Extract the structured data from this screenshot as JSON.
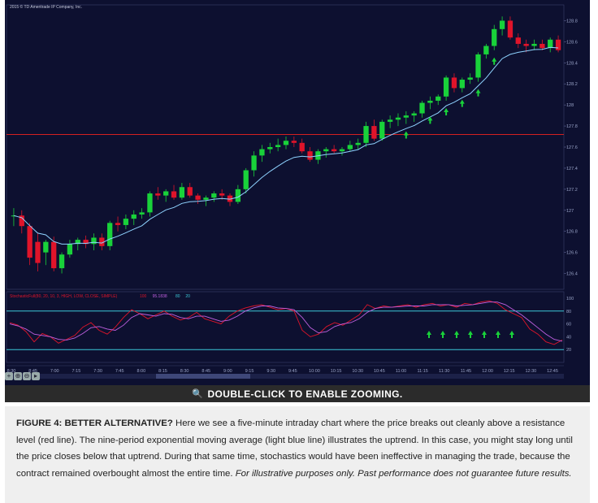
{
  "copyright": "2015 © TD Ameritrade IP Company, Inc.",
  "zoom_label": "DOUBLE-CLICK TO ENABLE ZOOMING.",
  "caption": {
    "label": "FIGURE 4: BETTER ALTERNATIVE?",
    "body": " Here we see a five-minute intraday chart where the price breaks out cleanly above a resistance level (red line). The nine-period exponential moving average (light blue line) illustrates the uptrend. In this case, you might stay long until the price closes below that uptrend. During that same time, stochastics would have been ineffective in managing the trade, because the contract remained overbought almost the entire time.",
    "disclaimer": " For illustrative purposes only. Past performance does not guarantee future results."
  },
  "colors": {
    "background": "#0d1030",
    "up": "#19d23a",
    "down": "#e0142a",
    "ema": "#8fd3ff",
    "resistance": "#d42020",
    "stoch_k": "#e0142a",
    "stoch_d": "#c060e0",
    "band": "#3cc8d8"
  },
  "chart_data": [
    {
      "type": "candlestick",
      "resistance": 127.72,
      "ylim": [
        126.25,
        128.95
      ],
      "yticks": [
        "128.8",
        "128.6",
        "128.4",
        "128.2",
        "128",
        "127.8",
        "127.6",
        "127.4",
        "127.2",
        "127",
        "126.8",
        "126.6",
        "126.4"
      ],
      "xticks": [
        "8:30",
        "8:45",
        "7:00",
        "7:15",
        "7:30",
        "7:45",
        "8:00",
        "8:15",
        "8:30",
        "8:45",
        "9:00",
        "9:15",
        "9:30",
        "9:45",
        "10:00",
        "10:15",
        "10:30",
        "10:45",
        "11:00",
        "11:15",
        "11:30",
        "11:45",
        "12:00",
        "12:15",
        "12:30",
        "12:45"
      ],
      "ohlc": [
        [
          126.95,
          127.02,
          126.85,
          126.95
        ],
        [
          126.95,
          127.0,
          126.78,
          126.85
        ],
        [
          126.85,
          126.88,
          126.48,
          126.55
        ],
        [
          126.7,
          126.78,
          126.42,
          126.5
        ],
        [
          126.6,
          126.72,
          126.48,
          126.7
        ],
        [
          126.7,
          126.75,
          126.42,
          126.45
        ],
        [
          126.45,
          126.6,
          126.4,
          126.58
        ],
        [
          126.58,
          126.72,
          126.55,
          126.68
        ],
        [
          126.68,
          126.74,
          126.62,
          126.72
        ],
        [
          126.72,
          126.76,
          126.64,
          126.68
        ],
        [
          126.68,
          126.78,
          126.62,
          126.74
        ],
        [
          126.74,
          126.78,
          126.62,
          126.66
        ],
        [
          126.66,
          126.9,
          126.62,
          126.88
        ],
        [
          126.88,
          126.94,
          126.8,
          126.86
        ],
        [
          126.86,
          126.96,
          126.82,
          126.92
        ],
        [
          126.92,
          127.0,
          126.86,
          126.96
        ],
        [
          126.96,
          127.02,
          126.92,
          126.98
        ],
        [
          126.98,
          127.18,
          126.94,
          127.16
        ],
        [
          127.16,
          127.22,
          127.1,
          127.14
        ],
        [
          127.14,
          127.2,
          127.08,
          127.18
        ],
        [
          127.18,
          127.24,
          127.1,
          127.12
        ],
        [
          127.12,
          127.26,
          127.1,
          127.22
        ],
        [
          127.22,
          127.26,
          127.12,
          127.14
        ],
        [
          127.14,
          127.16,
          127.06,
          127.1
        ],
        [
          127.1,
          127.14,
          127.04,
          127.12
        ],
        [
          127.12,
          127.18,
          127.08,
          127.16
        ],
        [
          127.16,
          127.2,
          127.1,
          127.14
        ],
        [
          127.14,
          127.16,
          127.04,
          127.08
        ],
        [
          127.08,
          127.24,
          127.06,
          127.2
        ],
        [
          127.2,
          127.4,
          127.16,
          127.38
        ],
        [
          127.38,
          127.56,
          127.32,
          127.52
        ],
        [
          127.52,
          127.62,
          127.46,
          127.58
        ],
        [
          127.58,
          127.64,
          127.54,
          127.6
        ],
        [
          127.6,
          127.68,
          127.56,
          127.62
        ],
        [
          127.62,
          127.7,
          127.58,
          127.66
        ],
        [
          127.66,
          127.7,
          127.6,
          127.64
        ],
        [
          127.64,
          127.68,
          127.54,
          127.56
        ],
        [
          127.56,
          127.6,
          127.46,
          127.48
        ],
        [
          127.48,
          127.58,
          127.44,
          127.56
        ],
        [
          127.56,
          127.6,
          127.5,
          127.58
        ],
        [
          127.58,
          127.62,
          127.54,
          127.56
        ],
        [
          127.56,
          127.6,
          127.52,
          127.58
        ],
        [
          127.58,
          127.66,
          127.56,
          127.62
        ],
        [
          127.62,
          127.68,
          127.58,
          127.64
        ],
        [
          127.64,
          127.84,
          127.6,
          127.8
        ],
        [
          127.8,
          127.86,
          127.66,
          127.68
        ],
        [
          127.68,
          127.86,
          127.66,
          127.84
        ],
        [
          127.84,
          127.9,
          127.78,
          127.86
        ],
        [
          127.86,
          127.92,
          127.8,
          127.88
        ],
        [
          127.88,
          127.94,
          127.82,
          127.9
        ],
        [
          127.9,
          127.94,
          127.84,
          127.92
        ],
        [
          127.92,
          128.04,
          127.88,
          128.02
        ],
        [
          128.02,
          128.08,
          127.96,
          128.04
        ],
        [
          128.04,
          128.1,
          128.0,
          128.08
        ],
        [
          128.08,
          128.28,
          128.04,
          128.26
        ],
        [
          128.26,
          128.3,
          128.12,
          128.16
        ],
        [
          128.16,
          128.26,
          128.12,
          128.24
        ],
        [
          128.24,
          128.3,
          128.2,
          128.26
        ],
        [
          128.26,
          128.5,
          128.22,
          128.48
        ],
        [
          128.48,
          128.58,
          128.44,
          128.56
        ],
        [
          128.56,
          128.76,
          128.52,
          128.72
        ],
        [
          128.72,
          128.84,
          128.66,
          128.8
        ],
        [
          128.8,
          128.84,
          128.62,
          128.64
        ],
        [
          128.64,
          128.68,
          128.54,
          128.58
        ],
        [
          128.58,
          128.62,
          128.5,
          128.56
        ],
        [
          128.56,
          128.62,
          128.52,
          128.58
        ],
        [
          128.58,
          128.62,
          128.52,
          128.54
        ],
        [
          128.54,
          128.64,
          128.5,
          128.62
        ],
        [
          128.62,
          128.66,
          128.5,
          128.52
        ]
      ]
    },
    {
      "type": "line",
      "label": "StochasticFull(80, 20, 10, 3, HIGH, LOW, CLOSE, SIMPLE)",
      "legend": [
        "100",
        "95.1838",
        "80",
        "20"
      ],
      "ylim": [
        0,
        100
      ],
      "levels": [
        80,
        20
      ],
      "yticks": [
        "100",
        "80",
        "60",
        "40",
        "20"
      ],
      "series": [
        {
          "values": [
            62,
            58,
            48,
            32,
            45,
            40,
            30,
            36,
            42,
            55,
            62,
            50,
            44,
            55,
            70,
            82,
            76,
            68,
            74,
            80,
            72,
            66,
            70,
            78,
            68,
            64,
            60,
            72,
            80,
            85,
            88,
            90,
            86,
            82,
            84,
            80,
            50,
            40,
            44,
            56,
            62,
            58,
            66,
            74,
            90,
            84,
            88,
            86,
            88,
            90,
            86,
            90,
            92,
            88,
            90,
            86,
            92,
            90,
            94,
            96,
            92,
            82,
            76,
            70,
            52,
            44,
            32,
            28,
            35
          ]
        },
        {
          "values": [
            60,
            57,
            52,
            44,
            42,
            40,
            36,
            35,
            38,
            45,
            54,
            56,
            52,
            50,
            58,
            70,
            76,
            74,
            72,
            76,
            75,
            70,
            68,
            72,
            72,
            68,
            64,
            66,
            72,
            80,
            85,
            88,
            88,
            85,
            84,
            82,
            70,
            54,
            46,
            48,
            56,
            60,
            62,
            68,
            78,
            84,
            86,
            86,
            87,
            88,
            88,
            88,
            90,
            90,
            90,
            88,
            89,
            90,
            92,
            94,
            94,
            90,
            82,
            74,
            64,
            54,
            44,
            36,
            33
          ]
        }
      ],
      "arrows_count": 7
    }
  ]
}
